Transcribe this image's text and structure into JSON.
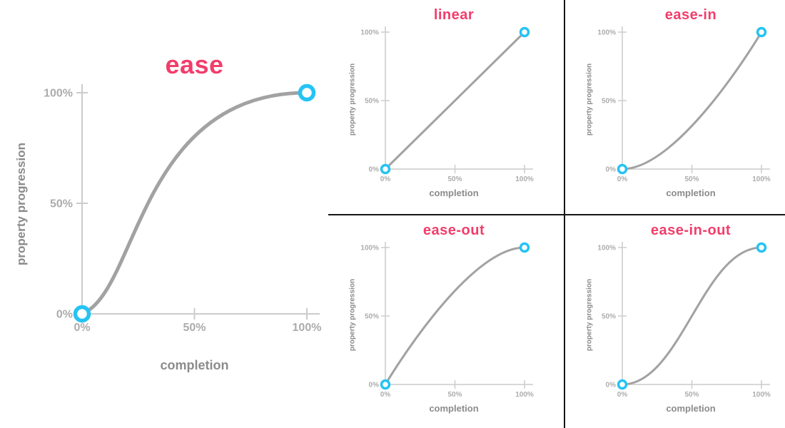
{
  "figure": {
    "description": "CSS transition-timing-function easing curves",
    "background": "#ffffff"
  },
  "colors": {
    "title": "#f23d6a",
    "curve": "#a2a2a2",
    "axis": "#cccccc",
    "tick_label": "#acacac",
    "axis_label": "#8b8b8b",
    "endpoint_stroke": "#25c3f4",
    "endpoint_fill": "#ffffff",
    "divider": "#161616"
  },
  "chart_data": [
    {
      "id": "ease",
      "type": "line",
      "title": "ease",
      "size": "large",
      "xlabel": "completion",
      "ylabel": "property progression",
      "x_ticks": [
        "0%",
        "50%",
        "100%"
      ],
      "y_ticks": [
        "0%",
        "50%",
        "100%"
      ],
      "x_range": [
        0,
        100
      ],
      "y_range": [
        0,
        100
      ],
      "cubic_bezier": [
        0.25,
        0.1,
        0.25,
        1.0
      ],
      "x_sample": [
        0,
        25,
        50,
        75,
        100
      ],
      "y_sample": [
        0,
        41,
        80,
        96,
        100
      ],
      "endpoints": [
        [
          0,
          0
        ],
        [
          100,
          100
        ]
      ],
      "grid": false,
      "legend": false
    },
    {
      "id": "linear",
      "type": "line",
      "title": "linear",
      "size": "small",
      "xlabel": "completion",
      "ylabel": "property progression",
      "x_ticks": [
        "0%",
        "50%",
        "100%"
      ],
      "y_ticks": [
        "0%",
        "50%",
        "100%"
      ],
      "x_range": [
        0,
        100
      ],
      "y_range": [
        0,
        100
      ],
      "cubic_bezier": [
        0.0,
        0.0,
        1.0,
        1.0
      ],
      "x_sample": [
        0,
        25,
        50,
        75,
        100
      ],
      "y_sample": [
        0,
        25,
        50,
        75,
        100
      ],
      "endpoints": [
        [
          0,
          0
        ],
        [
          100,
          100
        ]
      ],
      "grid": false,
      "legend": false
    },
    {
      "id": "ease-in",
      "type": "line",
      "title": "ease-in",
      "size": "small",
      "xlabel": "completion",
      "ylabel": "property progression",
      "x_ticks": [
        "0%",
        "50%",
        "100%"
      ],
      "y_ticks": [
        "0%",
        "50%",
        "100%"
      ],
      "x_range": [
        0,
        100
      ],
      "y_range": [
        0,
        100
      ],
      "cubic_bezier": [
        0.42,
        0.0,
        1.0,
        1.0
      ],
      "x_sample": [
        0,
        25,
        50,
        75,
        100
      ],
      "y_sample": [
        0,
        9,
        32,
        62,
        100
      ],
      "endpoints": [
        [
          0,
          0
        ],
        [
          100,
          100
        ]
      ],
      "grid": false,
      "legend": false
    },
    {
      "id": "ease-out",
      "type": "line",
      "title": "ease-out",
      "size": "small",
      "xlabel": "completion",
      "ylabel": "property progression",
      "x_ticks": [
        "0%",
        "50%",
        "100%"
      ],
      "y_ticks": [
        "0%",
        "50%",
        "100%"
      ],
      "x_range": [
        0,
        100
      ],
      "y_range": [
        0,
        100
      ],
      "cubic_bezier": [
        0.0,
        0.0,
        0.58,
        1.0
      ],
      "x_sample": [
        0,
        25,
        50,
        75,
        100
      ],
      "y_sample": [
        0,
        38,
        68,
        91,
        100
      ],
      "endpoints": [
        [
          0,
          0
        ],
        [
          100,
          100
        ]
      ],
      "grid": false,
      "legend": false
    },
    {
      "id": "ease-in-out",
      "type": "line",
      "title": "ease-in-out",
      "size": "small",
      "xlabel": "completion",
      "ylabel": "property progression",
      "x_ticks": [
        "0%",
        "50%",
        "100%"
      ],
      "y_ticks": [
        "0%",
        "50%",
        "100%"
      ],
      "x_range": [
        0,
        100
      ],
      "y_range": [
        0,
        100
      ],
      "cubic_bezier": [
        0.42,
        0.0,
        0.58,
        1.0
      ],
      "x_sample": [
        0,
        25,
        50,
        75,
        100
      ],
      "y_sample": [
        0,
        13,
        50,
        87,
        100
      ],
      "endpoints": [
        [
          0,
          0
        ],
        [
          100,
          100
        ]
      ],
      "grid": false,
      "legend": false
    }
  ]
}
